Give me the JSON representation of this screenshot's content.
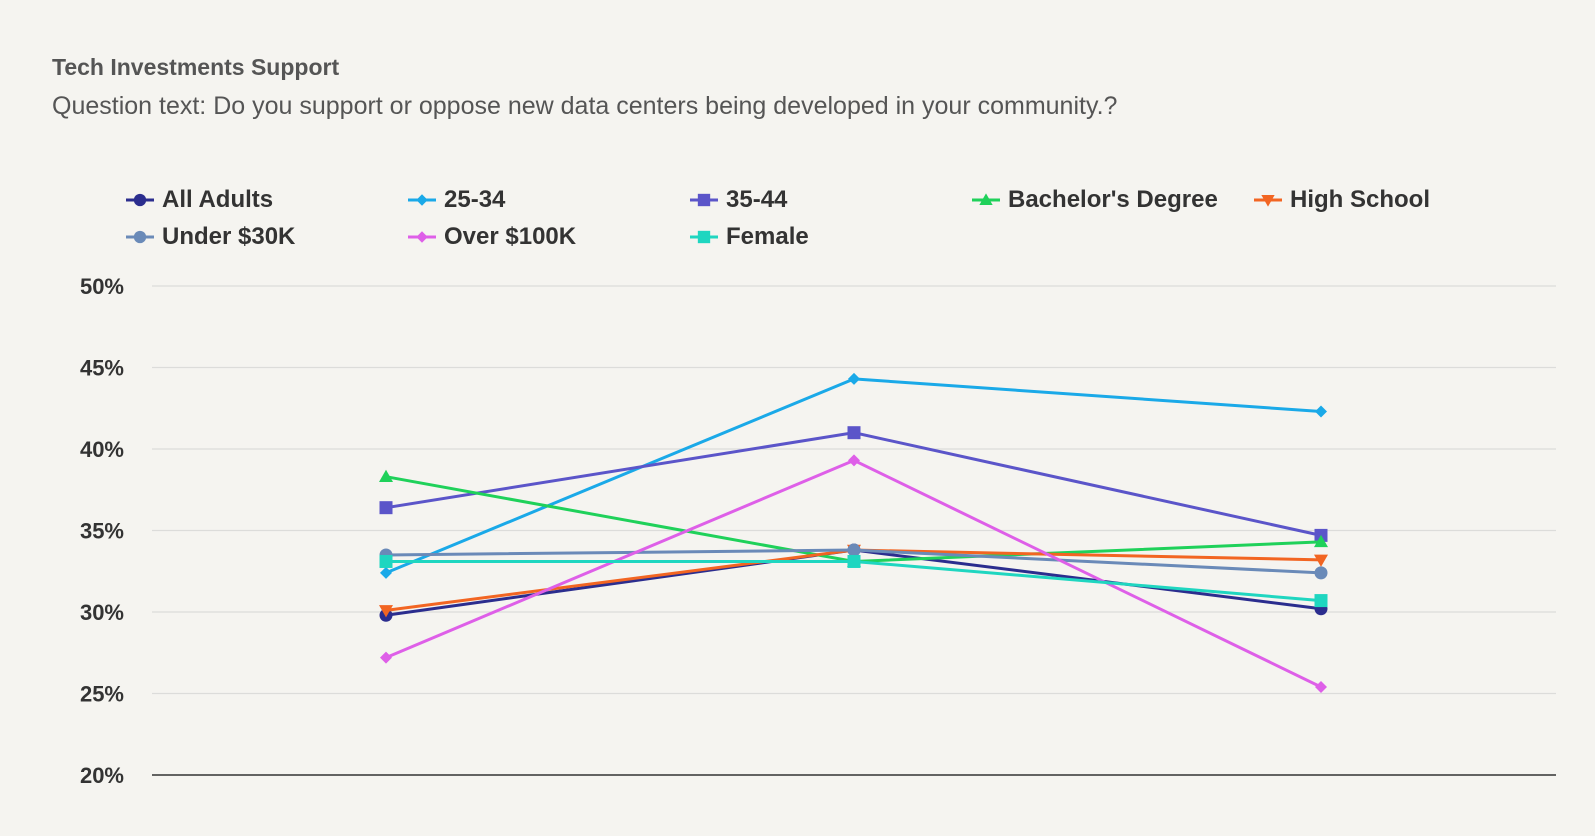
{
  "chart_data": {
    "type": "line",
    "title": "Tech Investments Support",
    "subtitle": "Question text: Do you support or oppose new data centers being developed in your community.?",
    "xlabel": "",
    "ylabel": "",
    "categories": [
      "",
      "",
      ""
    ],
    "ylim": [
      20,
      50
    ],
    "yticks": [
      "50%",
      "45%",
      "40%",
      "35%",
      "30%",
      "25%",
      "20%"
    ],
    "ytick_values": [
      50,
      45,
      40,
      35,
      30,
      25,
      20
    ],
    "grid": true,
    "legend_position": "top",
    "series": [
      {
        "name": "All Adults",
        "color": "#2b2d8e",
        "marker": "circle",
        "values": [
          29.8,
          33.8,
          30.2
        ]
      },
      {
        "name": "25-34",
        "color": "#1aa9e8",
        "marker": "diamond",
        "values": [
          32.4,
          44.3,
          42.3
        ]
      },
      {
        "name": "35-44",
        "color": "#5b55c9",
        "marker": "square",
        "values": [
          36.4,
          41.0,
          34.7
        ]
      },
      {
        "name": "Bachelor's Degree",
        "color": "#1fd15a",
        "marker": "triangle-up",
        "values": [
          38.3,
          33.1,
          34.3
        ]
      },
      {
        "name": "High School",
        "color": "#f26522",
        "marker": "triangle-down",
        "values": [
          30.1,
          33.8,
          33.2
        ]
      },
      {
        "name": "Under $30K",
        "color": "#6a8ab8",
        "marker": "circle",
        "values": [
          33.5,
          33.8,
          32.4
        ]
      },
      {
        "name": "Over $100K",
        "color": "#de5fe8",
        "marker": "diamond",
        "values": [
          27.2,
          39.3,
          25.4
        ]
      },
      {
        "name": "Female",
        "color": "#1fd6c0",
        "marker": "square",
        "values": [
          33.1,
          33.1,
          30.7
        ]
      }
    ]
  }
}
